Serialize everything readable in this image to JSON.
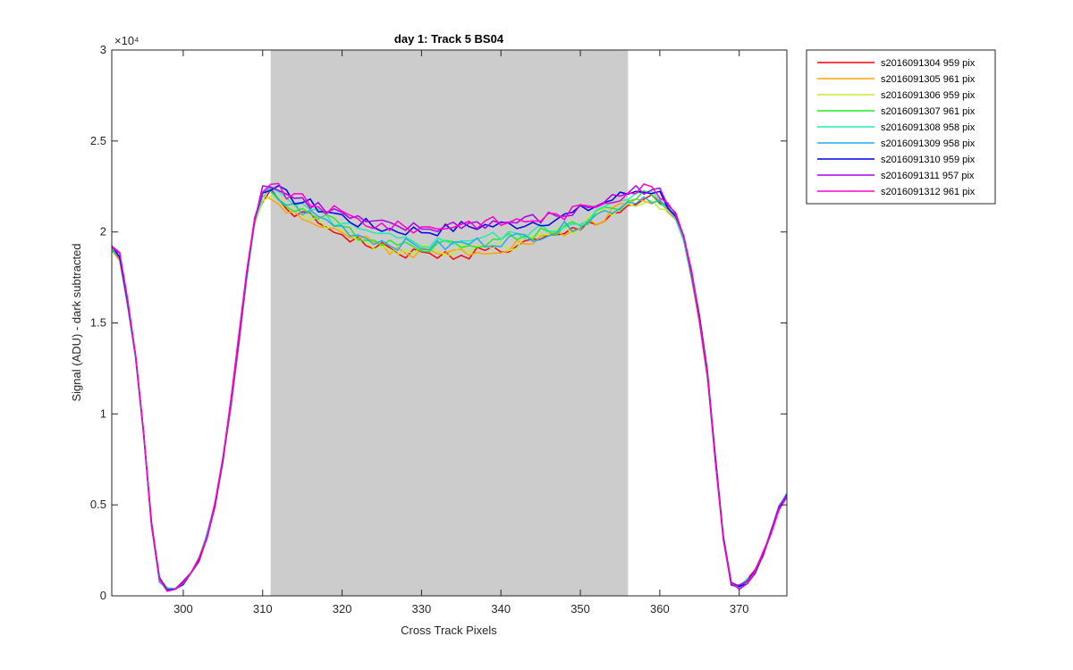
{
  "chart_data": {
    "type": "line",
    "title": "day 1: Track 5  BS04",
    "xlabel": "Cross Track Pixels",
    "ylabel": "Signal (ADU) - dark subtracted",
    "exponent_label": "×10⁴",
    "xlim": [
      291,
      376
    ],
    "ylim": [
      0,
      30000
    ],
    "xticks": [
      300,
      310,
      320,
      330,
      340,
      350,
      360,
      370
    ],
    "yticks": [
      0,
      5000,
      10000,
      15000,
      20000,
      25000,
      30000
    ],
    "ytick_labels": [
      "0",
      "0.5",
      "1",
      "1.5",
      "2",
      "2.5",
      "3"
    ],
    "shaded_region": {
      "x_start": 311,
      "x_end": 356,
      "color": "#cccccc"
    },
    "grid": false,
    "legend_position": "outside-right-top",
    "x": [
      291,
      292,
      293,
      294,
      295,
      296,
      297,
      298,
      299,
      300,
      301,
      302,
      303,
      304,
      305,
      306,
      307,
      308,
      309,
      310,
      311,
      312,
      313,
      314,
      315,
      316,
      317,
      318,
      319,
      320,
      321,
      322,
      323,
      324,
      325,
      326,
      327,
      328,
      329,
      330,
      331,
      332,
      333,
      334,
      335,
      336,
      337,
      338,
      339,
      340,
      341,
      342,
      343,
      344,
      345,
      346,
      347,
      348,
      349,
      350,
      351,
      352,
      353,
      354,
      355,
      356,
      357,
      358,
      359,
      360,
      361,
      362,
      363,
      364,
      365,
      366,
      367,
      368,
      369,
      370,
      371,
      372,
      373,
      374,
      375,
      376
    ],
    "base_curve": [
      19000,
      18500,
      16000,
      13000,
      9000,
      4000,
      900,
      300,
      400,
      700,
      1200,
      2000,
      3300,
      5000,
      7500,
      10500,
      14000,
      17500,
      20500,
      21800,
      22000,
      21600,
      21300,
      21100,
      20900,
      20700,
      20500,
      20300,
      20100,
      19900,
      19700,
      19500,
      19350,
      19200,
      19100,
      19000,
      18900,
      18850,
      18800,
      18750,
      18700,
      18700,
      18700,
      18750,
      18800,
      18850,
      18900,
      18950,
      19000,
      19050,
      19100,
      19200,
      19300,
      19400,
      19500,
      19600,
      19700,
      19850,
      20000,
      20200,
      20400,
      20600,
      20800,
      21000,
      21200,
      21400,
      21600,
      21700,
      21700,
      21500,
      21200,
      20700,
      19500,
      17500,
      15000,
      12000,
      7500,
      3200,
      700,
      500,
      800,
      1300,
      2300,
      3500,
      4800,
      5500
    ],
    "series": [
      {
        "name": "s2016091304 959 pix",
        "color": "#ff0000",
        "offset": 0,
        "seed": 1
      },
      {
        "name": "s2016091305 961 pix",
        "color": "#ffa500",
        "offset": 150,
        "seed": 2
      },
      {
        "name": "s2016091306 959 pix",
        "color": "#bfef2f",
        "offset": 250,
        "seed": 3
      },
      {
        "name": "s2016091307 961 pix",
        "color": "#22ee22",
        "offset": 600,
        "seed": 4
      },
      {
        "name": "s2016091308 958 pix",
        "color": "#22eeaa",
        "offset": 800,
        "seed": 5
      },
      {
        "name": "s2016091309 958 pix",
        "color": "#22aaee",
        "offset": 550,
        "seed": 6
      },
      {
        "name": "s2016091310 959 pix",
        "color": "#0000ee",
        "offset": 1500,
        "seed": 7
      },
      {
        "name": "s2016091311 957 pix",
        "color": "#aa00ee",
        "offset": 1650,
        "seed": 8
      },
      {
        "name": "s2016091312 961 pix",
        "color": "#ff00cc",
        "offset": 1700,
        "seed": 9
      }
    ]
  }
}
